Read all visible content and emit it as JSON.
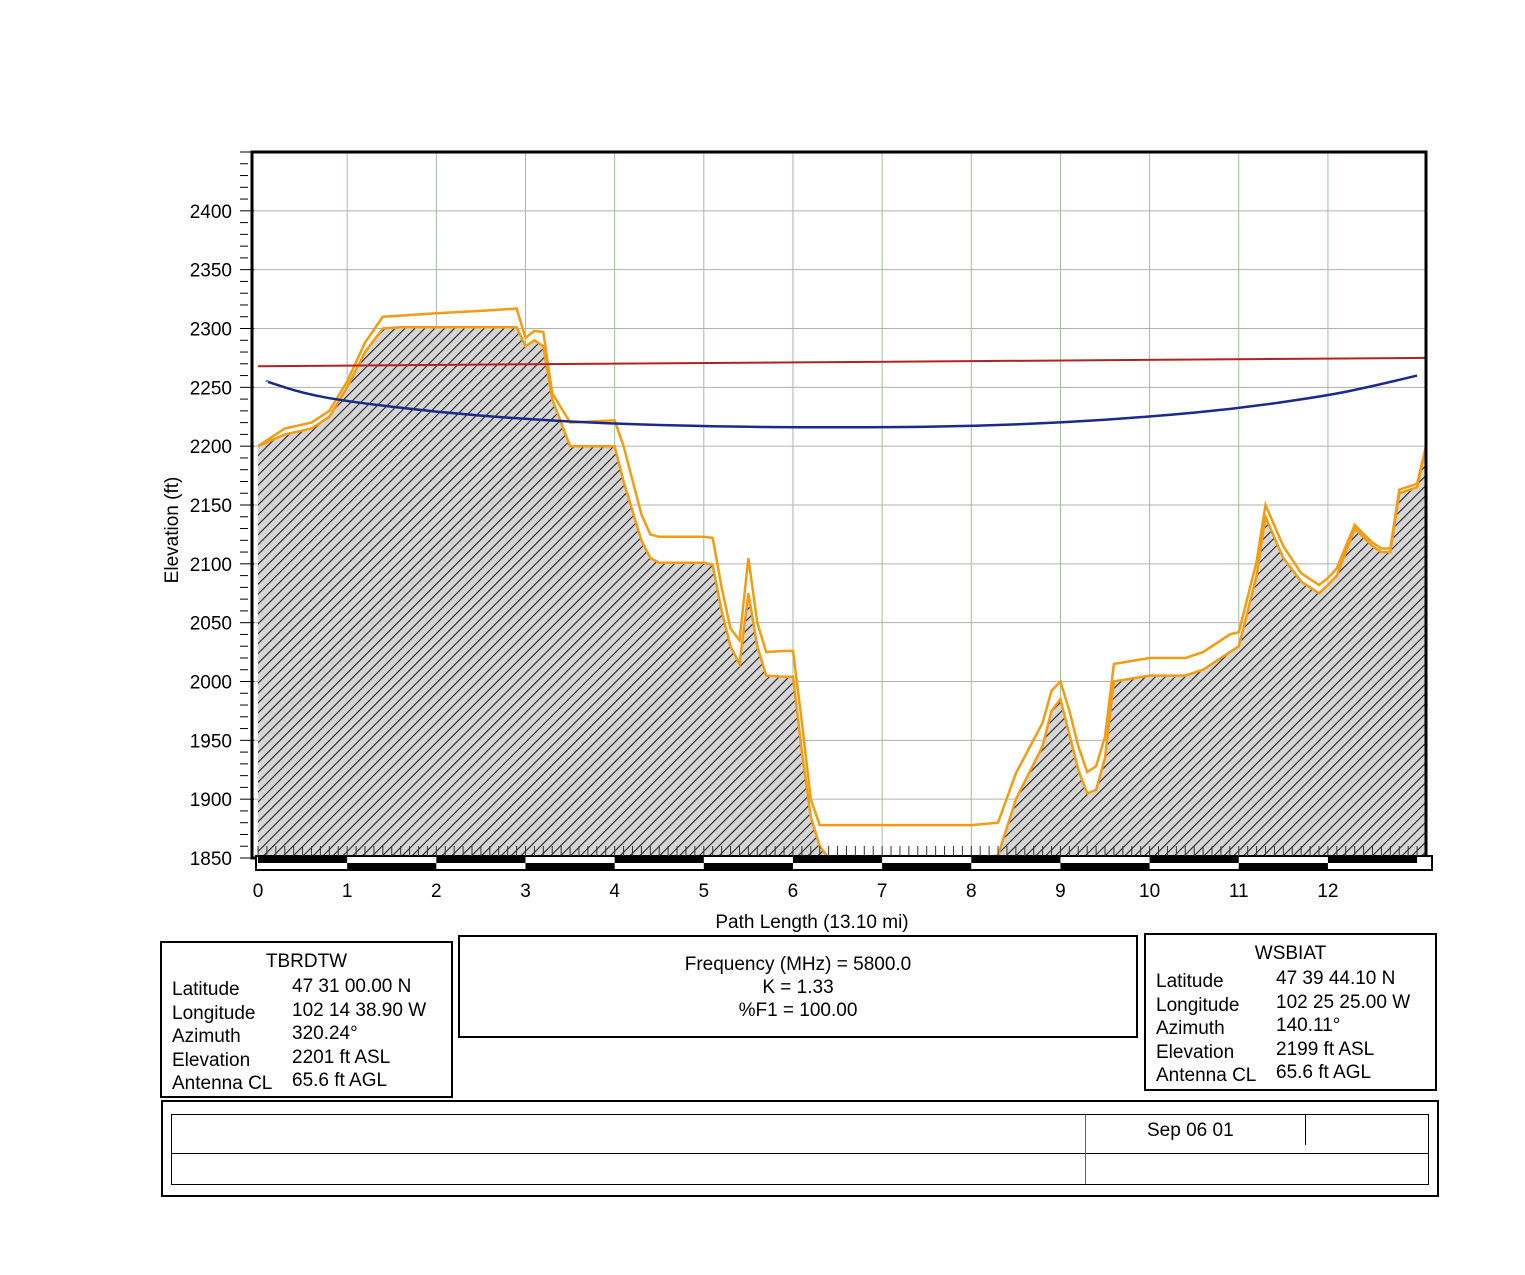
{
  "chart_data": {
    "type": "line",
    "xlabel": "Path Length (13.10 mi)",
    "ylabel": "Elevation (ft)",
    "xlim": [
      0,
      13.1
    ],
    "ylim": [
      1850,
      2450
    ],
    "x_ticks": [
      0,
      1,
      2,
      3,
      4,
      5,
      6,
      7,
      8,
      9,
      10,
      11,
      12
    ],
    "y_ticks": [
      1850,
      1900,
      1950,
      2000,
      2050,
      2100,
      2150,
      2200,
      2250,
      2300,
      2350,
      2400
    ],
    "grid": true,
    "colors": {
      "terrain": "#555555",
      "fresnel": "#f39c12",
      "los": "#b22222",
      "earth_curve": "#1a2a8a"
    },
    "terrain": {
      "x": [
        0,
        0.3,
        0.6,
        0.8,
        1.0,
        1.2,
        1.4,
        1.6,
        2.0,
        2.5,
        2.9,
        3.0,
        3.1,
        3.2,
        3.3,
        3.5,
        4.0,
        4.1,
        4.3,
        4.4,
        4.5,
        5.0,
        5.1,
        5.2,
        5.3,
        5.4,
        5.5,
        5.6,
        5.7,
        5.9,
        6.0,
        6.1,
        6.2,
        6.3,
        6.4,
        7.0,
        8.0,
        8.3,
        8.5,
        8.8,
        8.9,
        9.0,
        9.1,
        9.2,
        9.3,
        9.4,
        9.5,
        9.6,
        10.0,
        10.4,
        10.6,
        10.8,
        10.9,
        11.0,
        11.2,
        11.3,
        11.5,
        11.7,
        11.9,
        12.0,
        12.1,
        12.2,
        12.3,
        12.5,
        12.6,
        12.7,
        12.8,
        13.0,
        13.1
      ],
      "y": [
        2200,
        2210,
        2215,
        2225,
        2250,
        2280,
        2300,
        2301,
        2301,
        2301,
        2301,
        2285,
        2290,
        2285,
        2240,
        2200,
        2200,
        2170,
        2120,
        2105,
        2101,
        2101,
        2099,
        2060,
        2030,
        2015,
        2075,
        2030,
        2005,
        2004,
        2004,
        1940,
        1885,
        1860,
        1850,
        1850,
        1850,
        1852,
        1900,
        1945,
        1975,
        1985,
        1955,
        1925,
        1905,
        1908,
        1935,
        2000,
        2005,
        2005,
        2010,
        2020,
        2025,
        2030,
        2090,
        2140,
        2105,
        2085,
        2075,
        2082,
        2090,
        2110,
        2130,
        2115,
        2110,
        2110,
        2160,
        2165,
        2200
      ]
    },
    "fresnel_upper_offset": [
      0,
      5,
      5,
      5,
      5,
      8,
      10,
      10,
      12,
      14,
      16,
      7,
      8,
      12,
      5,
      20,
      22,
      30,
      22,
      20,
      22,
      22,
      23,
      20,
      15,
      20,
      30,
      20,
      20,
      22,
      22,
      25,
      15,
      18,
      28,
      28,
      28,
      28,
      22,
      20,
      17,
      15,
      20,
      20,
      18,
      20,
      18,
      15,
      15,
      15,
      15,
      15,
      15,
      12,
      12,
      10,
      10,
      7,
      7,
      6,
      6,
      5,
      3,
      3,
      3,
      3,
      3,
      3,
      0
    ],
    "los": {
      "x": [
        0,
        13.1
      ],
      "y": [
        2268,
        2275
      ]
    },
    "earth_curve": {
      "x": [
        0.1,
        0.5,
        1,
        2,
        3,
        4,
        5,
        6,
        7,
        8,
        9,
        10,
        11,
        12,
        12.5,
        13.0
      ],
      "y": [
        2255,
        2245,
        2238,
        2229,
        2223,
        2219,
        2217,
        2216,
        2216,
        2217,
        2220,
        2225,
        2232,
        2243,
        2251,
        2260
      ]
    }
  },
  "left_site": {
    "name": "TBRDTW",
    "rows": [
      {
        "label": "Latitude",
        "value": "47 31 00.00 N"
      },
      {
        "label": "Longitude",
        "value": "102 14 38.90 W"
      },
      {
        "label": "Azimuth",
        "value": "320.24°"
      },
      {
        "label": "Elevation",
        "value": "2201 ft ASL"
      },
      {
        "label": "Antenna CL",
        "value": "65.6 ft AGL"
      }
    ]
  },
  "center_params": {
    "frequency": "Frequency (MHz) = 5800.0",
    "k": "K = 1.33",
    "f1": "%F1 = 100.00"
  },
  "right_site": {
    "name": "WSBIAT",
    "rows": [
      {
        "label": "Latitude",
        "value": "47 39 44.10 N"
      },
      {
        "label": "Longitude",
        "value": "102 25 25.00 W"
      },
      {
        "label": "Azimuth",
        "value": "140.11°"
      },
      {
        "label": "Elevation",
        "value": "2199 ft ASL"
      },
      {
        "label": "Antenna CL",
        "value": "65.6 ft AGL"
      }
    ]
  },
  "footer": {
    "date": "Sep 06 01"
  }
}
